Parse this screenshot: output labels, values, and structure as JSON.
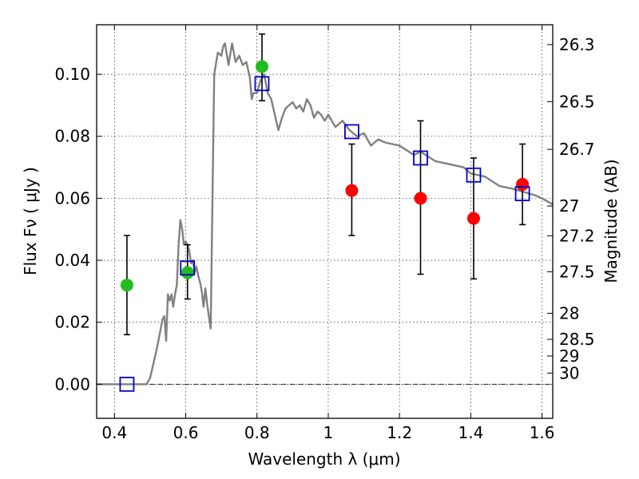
{
  "chart_data": {
    "type": "scatter",
    "xlabel": "Wavelength  λ (μm)",
    "ylabel": "Flux  Fν  ( μJy )",
    "y2label": "Magnitude (AB)",
    "xlim": [
      0.35,
      1.63
    ],
    "ylim": [
      -0.011,
      0.116
    ],
    "grid": true,
    "x_ticks": [
      0.4,
      0.6,
      0.8,
      1.0,
      1.2,
      1.4,
      1.6
    ],
    "x_tick_labels": [
      "0.4",
      "0.6",
      "0.8",
      "1",
      "1.2",
      "1.4",
      "1.6"
    ],
    "y_ticks": [
      0.0,
      0.02,
      0.04,
      0.06,
      0.08,
      0.1
    ],
    "y_tick_labels": [
      "0.00",
      "0.02",
      "0.04",
      "0.06",
      "0.08",
      "0.10"
    ],
    "mag_ticks": [
      {
        "label": "26.3",
        "flux": 0.1096
      },
      {
        "label": "26.5",
        "flux": 0.0912
      },
      {
        "label": "26.7",
        "flux": 0.0758
      },
      {
        "label": "27",
        "flux": 0.0575
      },
      {
        "label": "27.2",
        "flux": 0.0479
      },
      {
        "label": "27.5",
        "flux": 0.0363
      },
      {
        "label": "28",
        "flux": 0.0229
      },
      {
        "label": "28.5",
        "flux": 0.0145
      },
      {
        "label": "29",
        "flux": 0.0091
      },
      {
        "label": "30",
        "flux": 0.0036
      }
    ],
    "zero_line": 0.0,
    "series": [
      {
        "kind": "line",
        "color": "#808080",
        "points": [
          [
            0.35,
            0.0
          ],
          [
            0.49,
            0.0
          ],
          [
            0.5,
            0.002
          ],
          [
            0.51,
            0.007
          ],
          [
            0.52,
            0.012
          ],
          [
            0.53,
            0.018
          ],
          [
            0.535,
            0.021
          ],
          [
            0.54,
            0.022
          ],
          [
            0.545,
            0.014
          ],
          [
            0.55,
            0.029
          ],
          [
            0.555,
            0.027
          ],
          [
            0.56,
            0.029
          ],
          [
            0.565,
            0.025
          ],
          [
            0.57,
            0.029
          ],
          [
            0.575,
            0.032
          ],
          [
            0.58,
            0.045
          ],
          [
            0.585,
            0.053
          ],
          [
            0.59,
            0.05
          ],
          [
            0.595,
            0.045
          ],
          [
            0.6,
            0.046
          ],
          [
            0.605,
            0.045
          ],
          [
            0.61,
            0.043
          ],
          [
            0.615,
            0.039
          ],
          [
            0.62,
            0.04
          ],
          [
            0.625,
            0.036
          ],
          [
            0.63,
            0.038
          ],
          [
            0.635,
            0.035
          ],
          [
            0.64,
            0.033
          ],
          [
            0.645,
            0.03
          ],
          [
            0.65,
            0.025
          ],
          [
            0.655,
            0.031
          ],
          [
            0.66,
            0.026
          ],
          [
            0.665,
            0.022
          ],
          [
            0.67,
            0.018
          ],
          [
            0.675,
            0.06
          ],
          [
            0.68,
            0.1
          ],
          [
            0.69,
            0.107
          ],
          [
            0.7,
            0.106
          ],
          [
            0.705,
            0.109
          ],
          [
            0.71,
            0.11
          ],
          [
            0.72,
            0.103
          ],
          [
            0.73,
            0.11
          ],
          [
            0.74,
            0.104
          ],
          [
            0.75,
            0.106
          ],
          [
            0.76,
            0.103
          ],
          [
            0.77,
            0.104
          ],
          [
            0.78,
            0.099
          ],
          [
            0.785,
            0.092
          ],
          [
            0.79,
            0.094
          ],
          [
            0.8,
            0.094
          ],
          [
            0.81,
            0.098
          ],
          [
            0.82,
            0.1
          ],
          [
            0.83,
            0.094
          ],
          [
            0.84,
            0.092
          ],
          [
            0.85,
            0.087
          ],
          [
            0.86,
            0.082
          ],
          [
            0.87,
            0.086
          ],
          [
            0.88,
            0.089
          ],
          [
            0.89,
            0.09
          ],
          [
            0.9,
            0.091
          ],
          [
            0.91,
            0.089
          ],
          [
            0.92,
            0.09
          ],
          [
            0.93,
            0.088
          ],
          [
            0.94,
            0.092
          ],
          [
            0.95,
            0.09
          ],
          [
            0.96,
            0.086
          ],
          [
            0.97,
            0.088
          ],
          [
            0.98,
            0.087
          ],
          [
            0.99,
            0.085
          ],
          [
            1.0,
            0.087
          ],
          [
            1.02,
            0.083
          ],
          [
            1.04,
            0.085
          ],
          [
            1.06,
            0.082
          ],
          [
            1.08,
            0.08
          ],
          [
            1.1,
            0.081
          ],
          [
            1.12,
            0.077
          ],
          [
            1.14,
            0.079
          ],
          [
            1.16,
            0.078
          ],
          [
            1.2,
            0.077
          ],
          [
            1.24,
            0.074
          ],
          [
            1.26,
            0.075
          ],
          [
            1.3,
            0.072
          ],
          [
            1.34,
            0.071
          ],
          [
            1.38,
            0.07
          ],
          [
            1.4,
            0.068
          ],
          [
            1.44,
            0.067
          ],
          [
            1.48,
            0.064
          ],
          [
            1.52,
            0.063
          ],
          [
            1.55,
            0.062
          ],
          [
            1.58,
            0.061
          ],
          [
            1.6,
            0.06
          ],
          [
            1.63,
            0.058
          ]
        ]
      },
      {
        "kind": "markers",
        "marker": "circle",
        "color": "#22bb22",
        "points": [
          {
            "x": 0.435,
            "y": 0.032,
            "err_lo": 0.016,
            "err_hi": 0.048
          },
          {
            "x": 0.605,
            "y": 0.036,
            "err_lo": 0.0275,
            "err_hi": 0.045
          },
          {
            "x": 0.814,
            "y": 0.1025,
            "err_lo": 0.0915,
            "err_hi": 0.113
          }
        ]
      },
      {
        "kind": "markers",
        "marker": "circle",
        "color": "#ff0000",
        "points": [
          {
            "x": 1.066,
            "y": 0.0625,
            "err_lo": 0.048,
            "err_hi": 0.0775
          },
          {
            "x": 1.259,
            "y": 0.06,
            "err_lo": 0.0355,
            "err_hi": 0.085
          },
          {
            "x": 1.408,
            "y": 0.0535,
            "err_lo": 0.034,
            "err_hi": 0.073
          },
          {
            "x": 1.545,
            "y": 0.0645,
            "err_lo": 0.0515,
            "err_hi": 0.0775
          }
        ]
      },
      {
        "kind": "markers",
        "marker": "open-square",
        "color": "#0000cc",
        "points": [
          {
            "x": 0.435,
            "y": 0.0
          },
          {
            "x": 0.605,
            "y": 0.0375
          },
          {
            "x": 0.814,
            "y": 0.097
          },
          {
            "x": 1.066,
            "y": 0.0815
          },
          {
            "x": 1.259,
            "y": 0.073
          },
          {
            "x": 1.408,
            "y": 0.0675
          },
          {
            "x": 1.545,
            "y": 0.0615
          }
        ]
      }
    ]
  }
}
